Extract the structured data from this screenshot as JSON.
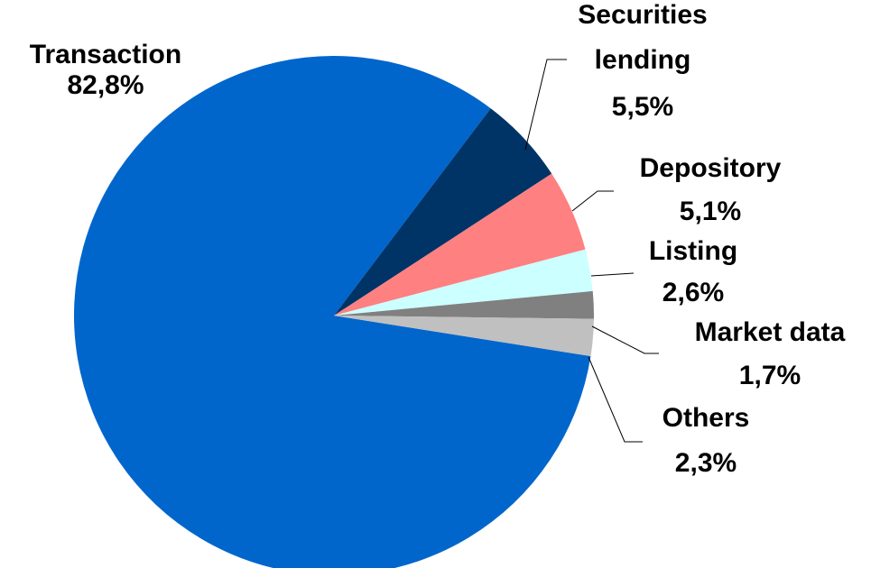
{
  "chart_data": {
    "type": "pie",
    "categories": [
      "Transaction",
      "Securities lending",
      "Depository",
      "Listing",
      "Market data",
      "Others"
    ],
    "values": [
      82.8,
      5.5,
      5.1,
      2.6,
      1.7,
      2.3
    ],
    "value_labels": [
      "82,8%",
      "5,5%",
      "5,1%",
      "2,6%",
      "1,7%",
      "2,3%"
    ],
    "colors": [
      "#0066cc",
      "#003366",
      "#ff8080",
      "#ccffff",
      "#808080",
      "#c0c0c0"
    ]
  }
}
